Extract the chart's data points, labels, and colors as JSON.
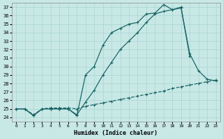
{
  "xlabel": "Humidex (Indice chaleur)",
  "bg_color": "#c8e8e6",
  "grid_color": "#a8d4d2",
  "line_color": "#1a6666",
  "xlim": [
    -0.5,
    23.5
  ],
  "ylim": [
    23.5,
    37.5
  ],
  "yticks": [
    24,
    25,
    26,
    27,
    28,
    29,
    30,
    31,
    32,
    33,
    34,
    35,
    36,
    37
  ],
  "xticks": [
    0,
    1,
    2,
    3,
    4,
    5,
    6,
    7,
    8,
    9,
    10,
    11,
    12,
    13,
    14,
    15,
    16,
    17,
    18,
    19,
    20,
    21,
    22,
    23
  ],
  "line1_x": [
    0,
    1,
    2,
    3,
    4,
    5,
    6,
    7,
    8,
    9,
    10,
    11,
    12,
    13,
    14,
    15,
    16,
    17,
    18,
    19,
    20
  ],
  "line1_y": [
    25.0,
    25.0,
    24.2,
    25.0,
    25.0,
    25.0,
    25.0,
    24.2,
    29.0,
    30.0,
    32.5,
    34.0,
    34.5,
    35.0,
    35.2,
    36.2,
    36.3,
    37.3,
    36.7,
    37.0,
    31.2
  ],
  "line2_x": [
    0,
    1,
    2,
    3,
    4,
    5,
    6,
    7,
    8,
    9,
    10,
    11,
    12,
    13,
    14,
    15,
    16,
    17,
    18,
    19,
    20,
    21,
    22,
    23
  ],
  "line2_y": [
    25.0,
    25.0,
    24.2,
    25.0,
    25.0,
    25.0,
    25.0,
    24.3,
    25.8,
    27.2,
    29.0,
    30.5,
    32.0,
    33.0,
    34.0,
    35.2,
    36.2,
    36.5,
    36.7,
    36.9,
    31.5,
    29.5,
    28.5,
    28.3
  ],
  "line3_x": [
    0,
    1,
    2,
    3,
    4,
    5,
    6,
    7,
    8,
    9,
    10,
    11,
    12,
    13,
    14,
    15,
    16,
    17,
    18,
    19,
    20,
    21,
    22,
    23
  ],
  "line3_y": [
    25.0,
    25.0,
    24.3,
    25.0,
    25.1,
    25.1,
    25.1,
    25.0,
    25.3,
    25.5,
    25.7,
    25.9,
    26.1,
    26.3,
    26.5,
    26.7,
    26.9,
    27.1,
    27.4,
    27.6,
    27.8,
    28.0,
    28.2,
    28.4
  ]
}
